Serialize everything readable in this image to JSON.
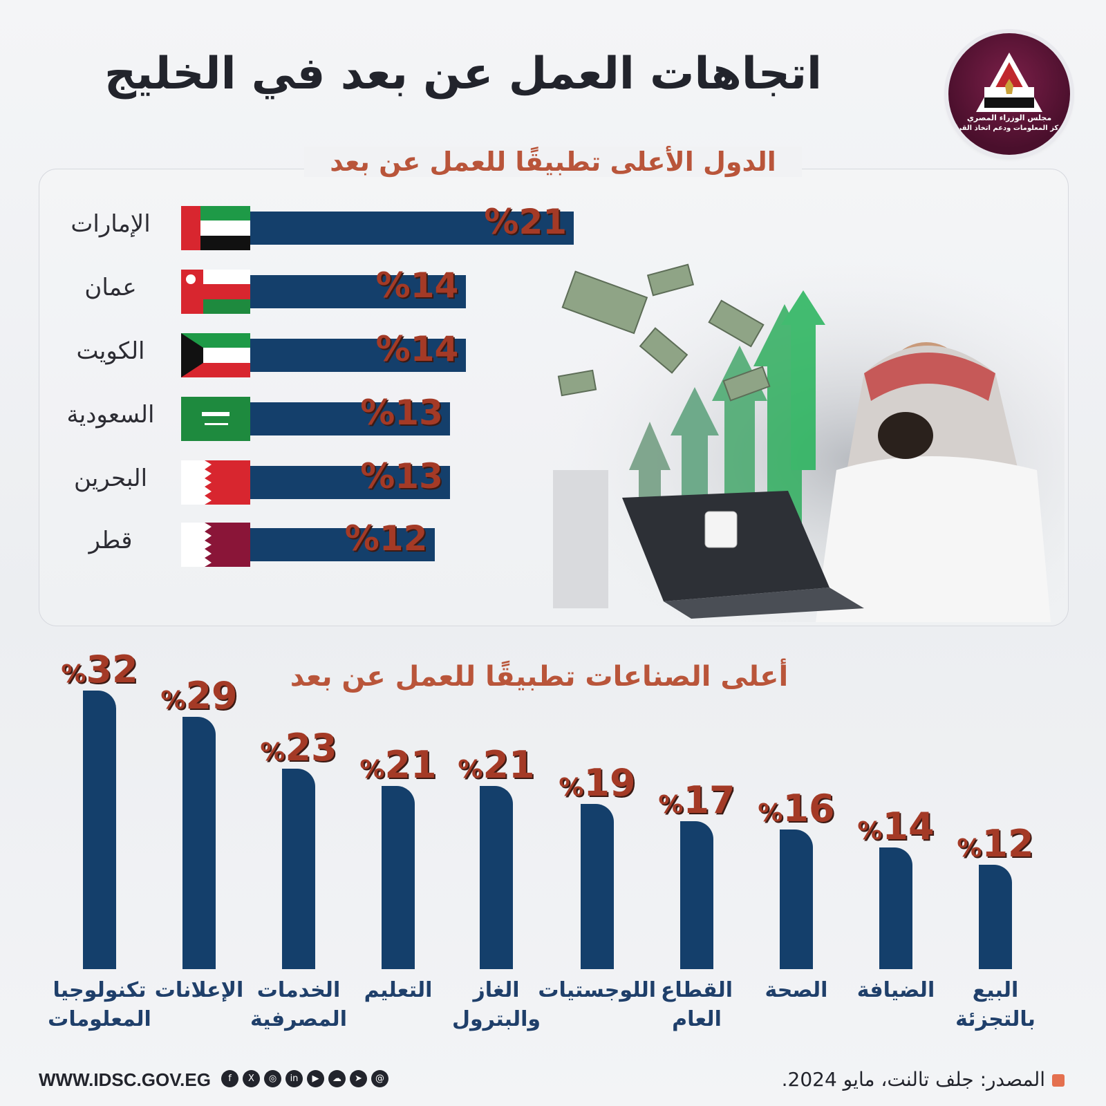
{
  "header": {
    "title": "اتجاهات العمل عن بعد في الخليج",
    "logo_text_1": "مجلس الوزراء المصري",
    "logo_text_2": "مركز المعلومات ودعم اتخاذ القرار"
  },
  "colors": {
    "bar": "#143f6b",
    "value": "#a43a26",
    "section_title": "#b9553a",
    "label": "#1f3f6a"
  },
  "chart_data": [
    {
      "type": "bar",
      "orientation": "horizontal",
      "title": "الدول الأعلى تطبيقًا للعمل عن بعد",
      "categories": [
        "الإمارات",
        "عمان",
        "الكويت",
        "السعودية",
        "البحرين",
        "قطر"
      ],
      "values": [
        21,
        14,
        14,
        13,
        13,
        12
      ],
      "value_labels": [
        "%21",
        "%14",
        "%14",
        "%13",
        "%13",
        "%12"
      ],
      "flags": [
        "uae-flag-icon",
        "oman-flag-icon",
        "kuwait-flag-icon",
        "saudi-flag-icon",
        "bahrain-flag-icon",
        "qatar-flag-icon"
      ]
    },
    {
      "type": "bar",
      "orientation": "vertical",
      "title": "أعلى الصناعات تطبيقًا للعمل عن بعد",
      "categories": [
        "تكنولوجيا المعلومات",
        "الإعلانات",
        "الخدمات المصرفية",
        "التعليم",
        "الغاز والبترول",
        "اللوجستيات",
        "القطاع العام",
        "الصحة",
        "الضيافة",
        "البيع بالتجزئة"
      ],
      "category_lines": [
        [
          "تكنولوجيا",
          "المعلومات"
        ],
        [
          "الإعلانات"
        ],
        [
          "الخدمات",
          "المصرفية"
        ],
        [
          "التعليم"
        ],
        [
          "الغاز",
          "والبترول"
        ],
        [
          "اللوجستيات"
        ],
        [
          "القطاع",
          "العام"
        ],
        [
          "الصحة"
        ],
        [
          "الضيافة"
        ],
        [
          "البيع",
          "بالتجزئة"
        ]
      ],
      "values": [
        32,
        29,
        23,
        21,
        21,
        19,
        17,
        16,
        14,
        12
      ],
      "value_labels": [
        "32",
        "29",
        "23",
        "21",
        "21",
        "19",
        "17",
        "16",
        "14",
        "12"
      ]
    }
  ],
  "footer": {
    "url": "WWW.IDSC.GOV.EG",
    "source": "المصدر: جلف تالنت، مايو 2024.",
    "social_icons": [
      "facebook-icon",
      "x-icon",
      "instagram-icon",
      "linkedin-icon",
      "youtube-icon",
      "soundcloud-icon",
      "telegram-icon",
      "threads-icon"
    ]
  }
}
